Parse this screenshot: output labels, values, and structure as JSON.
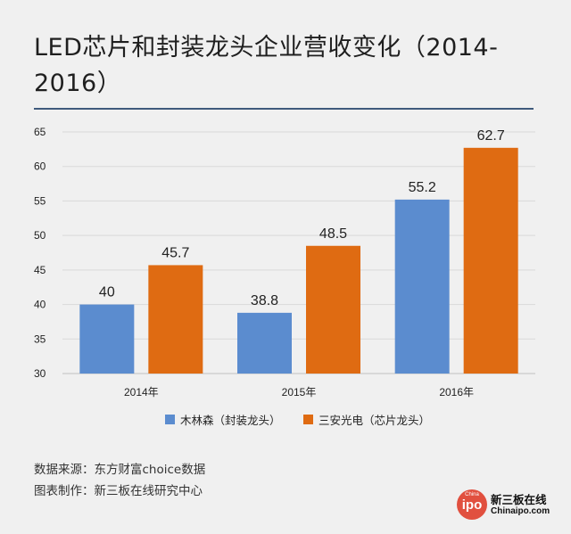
{
  "title": "LED芯片和封装龙头企业营收变化（2014-2016）",
  "chart_data": {
    "type": "bar",
    "title": "LED芯片和封装龙头企业营收变化（2014-2016）",
    "categories": [
      "2014年",
      "2015年",
      "2016年"
    ],
    "series": [
      {
        "name": "木林森（封装龙头）",
        "values": [
          40,
          38.8,
          55.2
        ],
        "color": "#5b8ccf"
      },
      {
        "name": "三安光电（芯片龙头）",
        "values": [
          45.7,
          48.5,
          62.7
        ],
        "color": "#df6b12"
      }
    ],
    "ylim": [
      30,
      65
    ],
    "yticks": [
      30,
      35,
      40,
      45,
      50,
      55,
      60,
      65
    ],
    "grid": true,
    "legend_position": "bottom"
  },
  "footer": {
    "source": "数据来源：东方财富choice数据",
    "made_by": "图表制作：新三板在线研究中心"
  },
  "logo": {
    "mark": "ipo",
    "mark_small": "China",
    "brand": "新三板在线",
    "site": "Chinaipo.com"
  }
}
